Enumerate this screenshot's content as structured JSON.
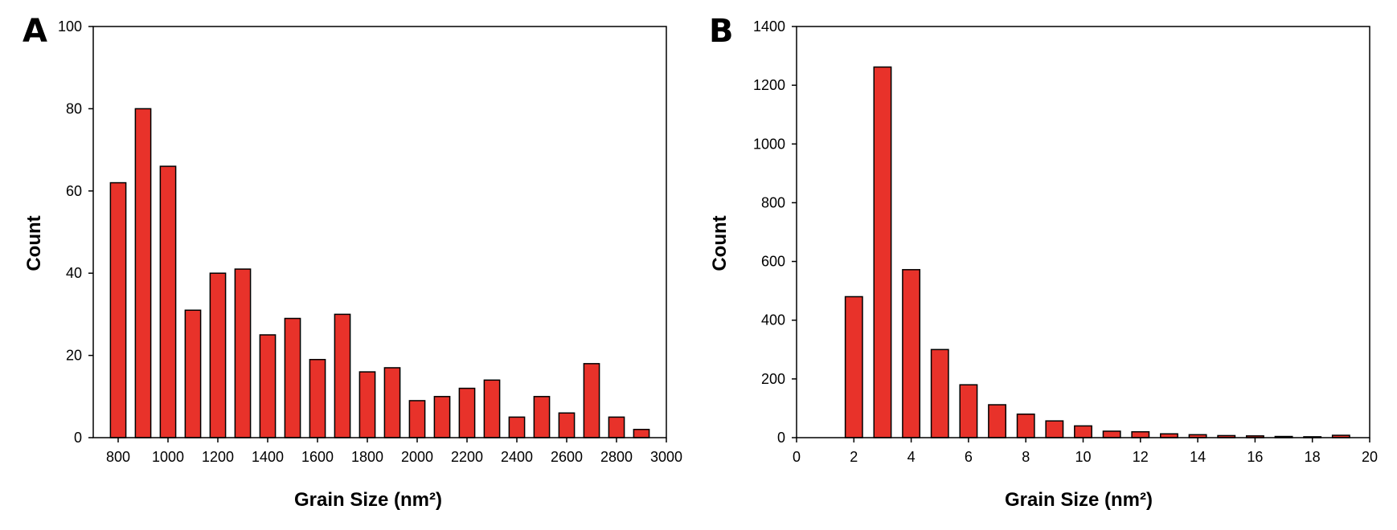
{
  "chart_data": [
    {
      "type": "bar",
      "panel": "A",
      "xlabel": "Grain Size (nm²)",
      "ylabel": "Count",
      "xlim": [
        700,
        3000
      ],
      "ylim": [
        0,
        100
      ],
      "x": [
        800,
        900,
        1000,
        1100,
        1200,
        1300,
        1400,
        1500,
        1600,
        1700,
        1800,
        1900,
        2000,
        2100,
        2200,
        2300,
        2400,
        2500,
        2600,
        2700,
        2800,
        2900
      ],
      "values": [
        62,
        80,
        66,
        31,
        40,
        41,
        25,
        29,
        19,
        30,
        16,
        17,
        9,
        10,
        12,
        14,
        5,
        10,
        6,
        18,
        5,
        2
      ],
      "bar_width": 62,
      "xticks": [
        800,
        1000,
        1200,
        1400,
        1600,
        1800,
        2000,
        2200,
        2400,
        2600,
        2800,
        3000
      ],
      "yticks": [
        0,
        20,
        40,
        60,
        80,
        100
      ],
      "grid": false
    },
    {
      "type": "bar",
      "panel": "B",
      "xlabel": "Grain Size (nm²)",
      "ylabel": "Count",
      "xlim": [
        0,
        20
      ],
      "ylim": [
        0,
        1400
      ],
      "x": [
        2,
        3,
        4,
        5,
        6,
        7,
        8,
        9,
        10,
        11,
        12,
        13,
        14,
        15,
        16,
        17,
        18,
        19
      ],
      "values": [
        480,
        1262,
        572,
        300,
        180,
        112,
        80,
        57,
        40,
        22,
        20,
        13,
        10,
        7,
        6,
        4,
        3,
        8
      ],
      "bar_width": 0.6,
      "xticks": [
        0,
        2,
        4,
        6,
        8,
        10,
        12,
        14,
        16,
        18,
        20
      ],
      "yticks": [
        0,
        200,
        400,
        600,
        800,
        1000,
        1200,
        1400
      ],
      "grid": false
    }
  ]
}
